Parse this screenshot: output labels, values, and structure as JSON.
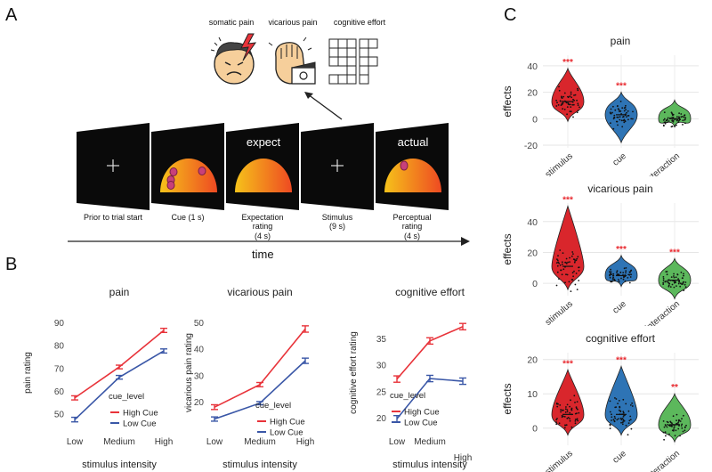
{
  "panels": {
    "a": "A",
    "b": "B",
    "c": "C"
  },
  "conditions": [
    {
      "label": "somatic pain",
      "icon": "somatic-pain-face-icon"
    },
    {
      "label": "vicarious pain",
      "icon": "vicarious-pain-hand-icon"
    },
    {
      "label": "cognitive effort",
      "icon": "cognitive-effort-cube-icon"
    }
  ],
  "trial": {
    "screen_texts": [
      "expect",
      "actual"
    ],
    "steps": [
      {
        "label": "Prior to trial start",
        "screen": "fixation"
      },
      {
        "label": "Cue (1 s)",
        "screen": "cue"
      },
      {
        "label": "Expectation\nrating\n(4 s)",
        "screen": "expect"
      },
      {
        "label": "Stimulus\n(9 s)",
        "screen": "fixation"
      },
      {
        "label": "Perceptual\nrating\n(4 s)",
        "screen": "actual"
      }
    ],
    "time_label": "time"
  },
  "colors": {
    "high_cue": "#e8333a",
    "low_cue": "#3a57a7",
    "stimulus": "#d9262c",
    "cue": "#2e74b5",
    "interaction": "#5cb85c",
    "significance": "#e8262c"
  },
  "chart_data": [
    {
      "type": "line",
      "panel": "B",
      "title": "pain",
      "xlabel": "stimulus intensity",
      "ylabel": "pain rating",
      "categories": [
        "Low",
        "Medium",
        "High"
      ],
      "ylim": [
        46,
        90
      ],
      "yticks": [
        50,
        60,
        70,
        80,
        90
      ],
      "legend_title": "cue_level",
      "series": [
        {
          "name": "High Cue",
          "values": [
            57,
            70.5,
            86.5
          ],
          "err": [
            0.9,
            0.8,
            0.9
          ]
        },
        {
          "name": "Low Cue",
          "values": [
            47.5,
            66,
            77.5
          ],
          "err": [
            1.0,
            0.8,
            0.9
          ]
        }
      ]
    },
    {
      "type": "line",
      "panel": "B",
      "title": "vicarious pain",
      "xlabel": "stimulus intensity",
      "ylabel": "vicarious pain rating",
      "categories": [
        "Low",
        "Medium",
        "High"
      ],
      "ylim": [
        12,
        50
      ],
      "yticks": [
        20,
        30,
        40,
        50
      ],
      "legend_title": "cue_level",
      "series": [
        {
          "name": "High Cue",
          "values": [
            18,
            26.5,
            47.5
          ],
          "err": [
            0.9,
            0.8,
            1.2
          ]
        },
        {
          "name": "Low Cue",
          "values": [
            13.5,
            19.5,
            35.5
          ],
          "err": [
            0.8,
            0.6,
            1.0
          ]
        }
      ]
    },
    {
      "type": "line",
      "panel": "B",
      "title": "cognitive effort",
      "xlabel": "stimulus intensity",
      "ylabel": "cognitive effort rating",
      "categories": [
        "Low",
        "Medium",
        "High"
      ],
      "ylim": [
        19,
        38
      ],
      "yticks": [
        20,
        25,
        30,
        35
      ],
      "legend_title": "cue_level",
      "series": [
        {
          "name": "High Cue",
          "values": [
            27.3,
            34.5,
            37.2
          ],
          "err": [
            0.6,
            0.6,
            0.6
          ]
        },
        {
          "name": "Low Cue",
          "values": [
            19.8,
            27.4,
            26.9
          ],
          "err": [
            0.6,
            0.6,
            0.6
          ]
        }
      ]
    },
    {
      "type": "violin",
      "panel": "C",
      "title": "pain",
      "ylabel": "effects",
      "categories": [
        "stimulus",
        "cue",
        "interaction"
      ],
      "ylim": [
        -22,
        48
      ],
      "yticks": [
        -20,
        0,
        20,
        40
      ],
      "medians": [
        13,
        3,
        0
      ],
      "ranges": [
        [
          -2,
          38
        ],
        [
          -18,
          20
        ],
        [
          -6,
          14
        ]
      ],
      "significance": [
        "***",
        "***",
        ""
      ]
    },
    {
      "type": "violin",
      "panel": "C",
      "title": "vicarious pain",
      "ylabel": "effects",
      "categories": [
        "stimulus",
        "cue",
        "interaction"
      ],
      "ylim": [
        -8,
        52
      ],
      "yticks": [
        0,
        20,
        40
      ],
      "medians": [
        11,
        5,
        2
      ],
      "ranges": [
        [
          -4,
          50
        ],
        [
          -2,
          18
        ],
        [
          -10,
          16
        ]
      ],
      "significance": [
        "***",
        "***",
        "***"
      ]
    },
    {
      "type": "violin",
      "panel": "C",
      "title": "cognitive effort",
      "ylabel": "effects",
      "categories": [
        "stimulus",
        "cue",
        "interaction"
      ],
      "ylim": [
        -5,
        22
      ],
      "yticks": [
        0,
        10,
        20
      ],
      "medians": [
        4,
        4,
        1
      ],
      "ranges": [
        [
          -2,
          17
        ],
        [
          -2,
          18
        ],
        [
          -4,
          10
        ]
      ],
      "significance": [
        "***",
        "***",
        "**"
      ]
    }
  ]
}
